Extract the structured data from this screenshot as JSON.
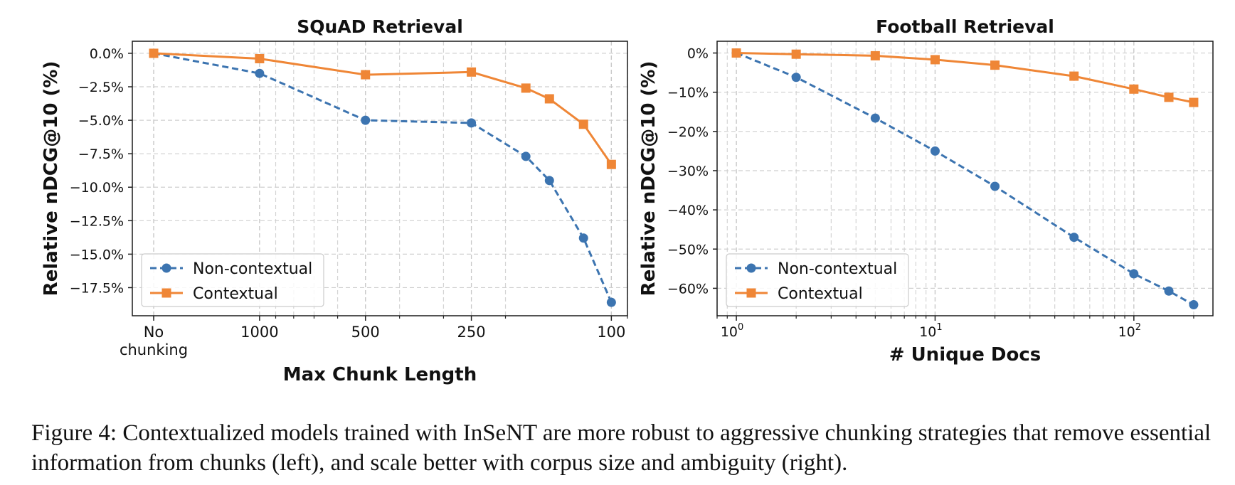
{
  "chart_data": [
    {
      "type": "line",
      "title": "SQuAD Retrieval",
      "xlabel": "Max Chunk Length",
      "ylabel": "Relative nDCG@10 (%)",
      "xscale": "log",
      "x_ticks": [
        {
          "value": 2000,
          "label_lines": [
            "No",
            "chunking"
          ]
        },
        {
          "value": 1000,
          "label_lines": [
            "1000"
          ]
        },
        {
          "value": 500,
          "label_lines": [
            "500"
          ]
        },
        {
          "value": 250,
          "label_lines": [
            "250"
          ]
        },
        {
          "value": 100,
          "label_lines": [
            "100"
          ]
        }
      ],
      "x_range": [
        2300,
        90
      ],
      "ylim": [
        -19.6,
        0.9
      ],
      "y_ticks": [
        0,
        -2.5,
        -5,
        -7.5,
        -10,
        -12.5,
        -15,
        -17.5
      ],
      "y_tick_labels": [
        "0.0%",
        "−2.5%",
        "−5.0%",
        "−7.5%",
        "−10.0%",
        "−12.5%",
        "−15.0%",
        "−17.5%"
      ],
      "grid": true,
      "legend_position": "lower-left",
      "series": [
        {
          "name": "Non-contextual",
          "color": "#3c74b0",
          "style": "dashed",
          "marker": "circle",
          "x": [
            2000,
            1000,
            500,
            250,
            175,
            150,
            120,
            100
          ],
          "y": [
            0.0,
            -1.5,
            -5.0,
            -5.2,
            -7.7,
            -9.5,
            -13.8,
            -18.6
          ]
        },
        {
          "name": "Contextual",
          "color": "#ef8636",
          "style": "solid",
          "marker": "square",
          "x": [
            2000,
            1000,
            500,
            250,
            175,
            150,
            120,
            100
          ],
          "y": [
            0.0,
            -0.4,
            -1.6,
            -1.4,
            -2.6,
            -3.4,
            -5.3,
            -8.3
          ]
        }
      ]
    },
    {
      "type": "line",
      "title": "Football Retrieval",
      "xlabel": "# Unique Docs",
      "ylabel": "Relative nDCG@10 (%)",
      "xscale": "log",
      "x_ticks": [
        {
          "value": 1,
          "base": "10",
          "exp": "0"
        },
        {
          "value": 10,
          "base": "10",
          "exp": "1"
        },
        {
          "value": 100,
          "base": "10",
          "exp": "2"
        }
      ],
      "x_range": [
        0.8,
        250
      ],
      "ylim": [
        -67,
        3
      ],
      "y_ticks": [
        0,
        -10,
        -20,
        -30,
        -40,
        -50,
        -60
      ],
      "y_tick_labels": [
        "0%",
        "−10%",
        "−20%",
        "−30%",
        "−40%",
        "−50%",
        "−60%"
      ],
      "grid": true,
      "legend_position": "lower-left",
      "series": [
        {
          "name": "Non-contextual",
          "color": "#3c74b0",
          "style": "dashed",
          "marker": "circle",
          "x": [
            1,
            2,
            5,
            10,
            20,
            50,
            100,
            150,
            200
          ],
          "y": [
            0,
            -6.2,
            -16.6,
            -25.0,
            -34.0,
            -47.0,
            -56.3,
            -60.7,
            -64.2
          ]
        },
        {
          "name": "Contextual",
          "color": "#ef8636",
          "style": "solid",
          "marker": "square",
          "x": [
            1,
            2,
            5,
            10,
            20,
            50,
            100,
            150,
            200
          ],
          "y": [
            0,
            -0.3,
            -0.7,
            -1.7,
            -3.1,
            -5.9,
            -9.2,
            -11.3,
            -12.6
          ]
        }
      ]
    }
  ],
  "caption": "Figure 4: Contextualized models trained with InSeNT are more robust to aggressive chunking strategies that remove essential information from chunks (left), and scale better with corpus size and ambiguity (right)."
}
